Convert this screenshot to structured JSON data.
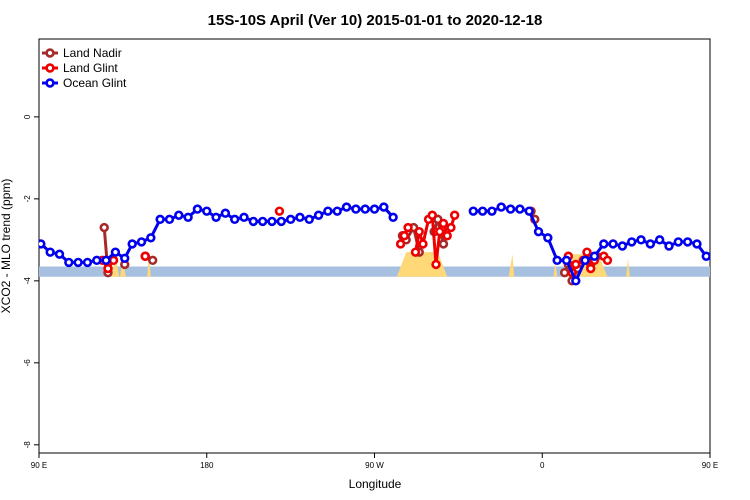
{
  "chart_data": {
    "type": "line",
    "title": "15S-10S April (Ver 10)   2015-01-01 to 2020-12-18",
    "xlabel": "Longitude",
    "ylabel": "XCO2 - MLO trend (ppm)",
    "xlim": [
      90,
      450
    ],
    "ylim": [
      -8.2,
      1.9
    ],
    "x_ticks": [
      {
        "value": 90,
        "label": "90 E"
      },
      {
        "value": 180,
        "label": "180"
      },
      {
        "value": 270,
        "label": "90 W"
      },
      {
        "value": 360,
        "label": "0"
      },
      {
        "value": 450,
        "label": "90 E"
      },
      {
        "value": 540,
        "label": "180"
      }
    ],
    "y_ticks": [
      {
        "value": 0,
        "label": "0"
      },
      {
        "value": -2,
        "label": "-2"
      },
      {
        "value": -4,
        "label": "-4"
      },
      {
        "value": -6,
        "label": "-6"
      },
      {
        "value": -8,
        "label": "-8"
      }
    ],
    "grid": false,
    "legend_position": "top-left",
    "colors": {
      "land_nadir": "#a52a2a",
      "land_glint": "#ee0000",
      "ocean_glint": "#0000ee",
      "land_band": "#a8c0e0",
      "land_fill": "#ffd878"
    },
    "band": {
      "y_range": [
        -3.9,
        -3.65
      ]
    },
    "land_fill": [
      {
        "x": [
          129,
          131,
          133
        ],
        "height": 0.3
      },
      {
        "x": [
          133.5,
          135,
          136.5
        ],
        "height": 0.25
      },
      {
        "x": [
          148,
          149,
          150
        ],
        "height": 0.25
      },
      {
        "x": [
          282,
          287,
          304,
          309
        ],
        "height": 0.35
      },
      {
        "x": [
          342,
          344,
          345
        ],
        "height": 0.3
      },
      {
        "x": [
          366,
          367,
          368
        ],
        "height": 0.1
      },
      {
        "x": [
          372,
          376,
          390,
          395
        ],
        "height": 0.3
      },
      {
        "x": [
          405,
          406,
          407
        ],
        "height": 0.2
      },
      {
        "x": [
          486,
          487,
          488
        ],
        "height": 0.25
      },
      {
        "x": [
          491,
          492,
          493
        ],
        "height": 0.2
      },
      {
        "x": [
          500,
          502,
          504
        ],
        "height": 0.3
      }
    ],
    "series": [
      {
        "name": "Land Nadir",
        "color": "#a52a2a",
        "segments": [
          {
            "x": [
              125,
              127
            ],
            "y": [
              -2.7,
              -3.8
            ]
          },
          {
            "x": [
              136
            ],
            "y": [
              -3.6
            ]
          },
          {
            "x": [
              147
            ],
            "y": [
              -3.4
            ]
          },
          {
            "x": [
              151
            ],
            "y": [
              -3.5
            ]
          },
          {
            "x": [
              285,
              287,
              291,
              294
            ],
            "y": [
              -2.9,
              -3.0,
              -2.7,
              -3.3
            ]
          },
          {
            "x": [
              302,
              304,
              307
            ],
            "y": [
              -2.8,
              -2.5,
              -3.1
            ]
          },
          {
            "x": [
              354,
              356
            ],
            "y": [
              -2.3,
              -2.5
            ]
          },
          {
            "x": [
              372,
              374,
              376,
              379
            ],
            "y": [
              -3.8,
              -3.6,
              -4.0,
              -3.7
            ]
          },
          {
            "x": [
              386,
              389
            ],
            "y": [
              -3.6,
              -3.4
            ]
          },
          {
            "x": [
              481,
              483
            ],
            "y": [
              -2.7,
              -3.8
            ]
          },
          {
            "x": [
              492
            ],
            "y": [
              -3.5
            ]
          },
          {
            "x": [
              501
            ],
            "y": [
              -3.4
            ]
          },
          {
            "x": [
              505
            ],
            "y": [
              -3.5
            ]
          }
        ]
      },
      {
        "name": "Land Glint",
        "color": "#ee0000",
        "segments": [
          {
            "x": [
              124,
              127,
              130
            ],
            "y": [
              -3.5,
              -3.7,
              -3.5
            ]
          },
          {
            "x": [
              147
            ],
            "y": [
              -3.4
            ]
          },
          {
            "x": [
              219
            ],
            "y": [
              -2.3
            ]
          },
          {
            "x": [
              284,
              286,
              288
            ],
            "y": [
              -3.1,
              -2.9,
              -2.7
            ]
          },
          {
            "x": [
              292,
              294,
              296,
              299,
              301,
              303,
              305
            ],
            "y": [
              -3.3,
              -2.8,
              -3.1,
              -2.5,
              -2.4,
              -3.6,
              -2.8
            ]
          },
          {
            "x": [
              307,
              309,
              311,
              313
            ],
            "y": [
              -2.6,
              -2.9,
              -2.7,
              -2.4
            ]
          },
          {
            "x": [
              374,
              376,
              378
            ],
            "y": [
              -3.4,
              -3.8,
              -3.6
            ]
          },
          {
            "x": [
              382,
              384,
              386,
              388
            ],
            "y": [
              -3.5,
              -3.3,
              -3.7,
              -3.5
            ]
          },
          {
            "x": [
              393,
              395
            ],
            "y": [
              -3.4,
              -3.5
            ]
          },
          {
            "x": [
              481,
              483
            ],
            "y": [
              -3.5,
              -3.7
            ]
          },
          {
            "x": [
              502
            ],
            "y": [
              -3.4
            ]
          }
        ]
      },
      {
        "name": "Ocean Glint",
        "color": "#0000ee",
        "segments": [
          {
            "x": [
              91,
              96,
              101,
              106,
              111,
              116,
              121,
              126,
              131,
              136,
              140,
              145,
              150,
              155,
              160,
              165,
              170,
              175,
              180,
              185,
              190,
              195,
              200,
              205,
              210,
              215,
              220,
              225,
              230,
              235,
              240,
              245,
              250,
              255,
              260,
              265,
              270,
              275,
              280
            ],
            "y": [
              -3.1,
              -3.3,
              -3.35,
              -3.55,
              -3.55,
              -3.55,
              -3.5,
              -3.5,
              -3.3,
              -3.45,
              -3.1,
              -3.05,
              -2.95,
              -2.5,
              -2.5,
              -2.4,
              -2.45,
              -2.25,
              -2.3,
              -2.45,
              -2.35,
              -2.5,
              -2.45,
              -2.55,
              -2.55,
              -2.55,
              -2.55,
              -2.5,
              -2.45,
              -2.5,
              -2.4,
              -2.3,
              -2.3,
              -2.2,
              -2.25,
              -2.25,
              -2.25,
              -2.2,
              -2.45
            ]
          },
          {
            "x": [
              323,
              328,
              333,
              338,
              343,
              348,
              353,
              358,
              363,
              368,
              373,
              378,
              383,
              388,
              393,
              398,
              403,
              408,
              413,
              418,
              423,
              428,
              433,
              438,
              443,
              448,
              452,
              458,
              463,
              468,
              473,
              478
            ],
            "y": [
              -2.3,
              -2.3,
              -2.3,
              -2.2,
              -2.25,
              -2.25,
              -2.3,
              -2.8,
              -2.95,
              -3.5,
              -3.5,
              -4.0,
              -3.5,
              -3.4,
              -3.1,
              -3.1,
              -3.15,
              -3.05,
              -3.0,
              -3.1,
              -3.0,
              -3.15,
              -3.05,
              -3.05,
              -3.1,
              -3.4,
              -3.45,
              -3.55,
              -3.55,
              -3.55,
              -3.5,
              -3.5
            ]
          },
          {
            "x": [
              484,
              489,
              494,
              499,
              504,
              509,
              514,
              519,
              524,
              529,
              534,
              539,
              543
            ],
            "y": [
              -3.5,
              -3.5,
              -3.3,
              -3.45,
              -3.1,
              -3.05,
              -2.95,
              -2.5,
              -2.5,
              -2.4,
              -2.45,
              -2.25,
              -2.3
            ]
          }
        ]
      }
    ]
  }
}
